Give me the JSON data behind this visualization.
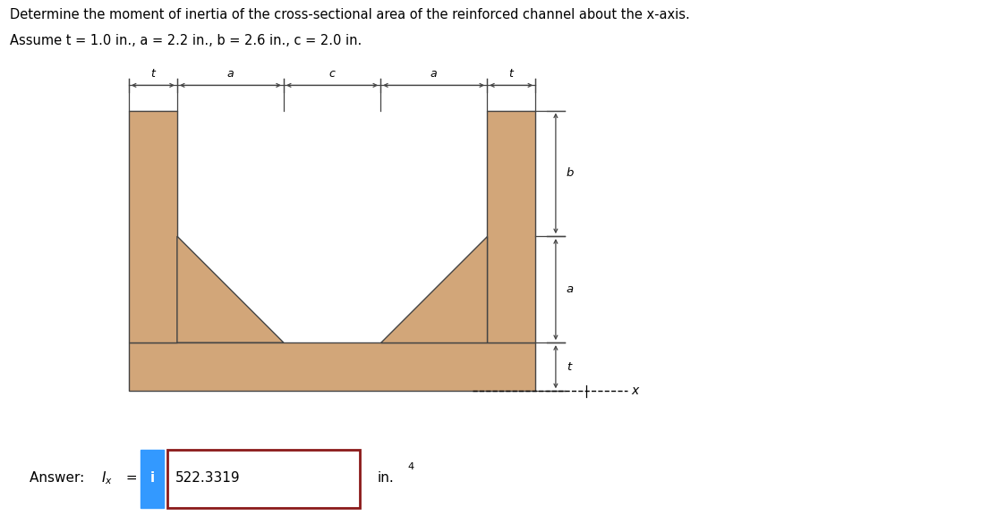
{
  "title_line1": "Determine the moment of inertia of the cross-sectional area of the reinforced channel about the x-axis.",
  "title_line2": "Assume t = 1.0 in., a = 2.2 in., b = 2.6 in., c = 2.0 in.",
  "t": 1.0,
  "a": 2.2,
  "b": 2.6,
  "c": 2.0,
  "answer_value": "522.3319",
  "fill_color": "#D2A679",
  "edge_color": "#444444",
  "bg_color": "#ffffff",
  "answer_box_color": "#8B1A1A",
  "info_box_color": "#3399FF",
  "dim_line_color": "#444444"
}
